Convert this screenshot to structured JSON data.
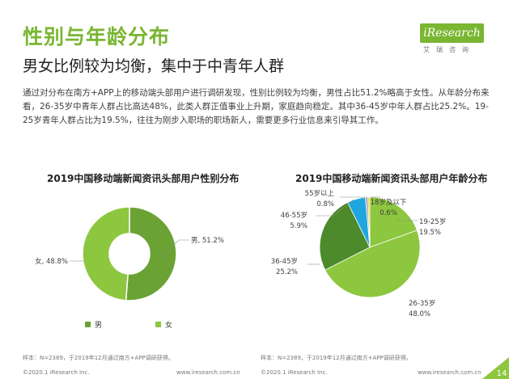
{
  "header": {
    "title": "性别与年龄分布",
    "subtitle": "男女比例较为均衡，集中于中青年人群",
    "intro": "通过对分布在南方+APP上的移动端头部用户进行调研发现，性别比例较为均衡，男性占比51.2%略高于女性。从年龄分布来看，26-35岁中青年人群占比高达48%，此类人群正值事业上升期，家庭趋向稳定。其中36-45岁中年人群占比25.2%。19-25岁青年人群占比为19.5%，往往为刚步入职场的职场新人，需要更多行业信息来引导其工作。"
  },
  "logo": {
    "text": "iResearch",
    "sub": "艾瑞咨询"
  },
  "colors": {
    "green_light": "#8dc63f",
    "green_mid": "#6aa334",
    "green_dark": "#4c8a2c",
    "blue": "#1fa6df",
    "yellow": "#f3c71e",
    "grey": "#a6a6a6",
    "title_green": "#7ab632"
  },
  "chart_data": [
    {
      "type": "pie",
      "variant": "donut",
      "title": "2019中国移动端新闻资讯头部用户性别分布",
      "categories": [
        "男",
        "女"
      ],
      "values": [
        51.2,
        48.8
      ],
      "unit": "%",
      "labels": [
        "男, 51.2%",
        "女, 48.8%"
      ],
      "legend": [
        "男",
        "女"
      ],
      "legend_position": "bottom"
    },
    {
      "type": "pie",
      "title": "2019中国移动端新闻资讯头部用户年龄分布",
      "categories": [
        "19-25岁",
        "26-35岁",
        "36-45岁",
        "46-55岁",
        "55岁以上",
        "18岁及以下"
      ],
      "values": [
        19.5,
        48.0,
        25.2,
        5.9,
        0.8,
        0.6
      ],
      "unit": "%",
      "value_labels": [
        "19.5%",
        "48.0%",
        "25.2%",
        "5.9%",
        "0.8%",
        "0.6%"
      ]
    }
  ],
  "footer": {
    "note_left": "样本：N=2389，于2019年12月通过南方+APP调研获得。",
    "note_right": "样本：N=2389，于2019年12月通过南方+APP调研获得。",
    "copyright_left": "©2020.1 iResearch Inc.",
    "url_left": "www.iresearch.com.cn",
    "copyright_right": "©2020.1 iResearch Inc.",
    "url_right": "www.iresearch.com.cn",
    "page": "14"
  }
}
